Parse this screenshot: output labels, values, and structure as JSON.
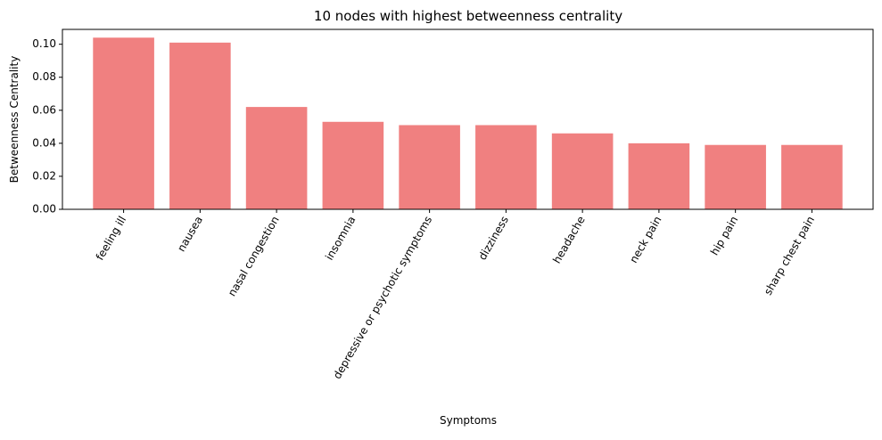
{
  "chart_data": {
    "type": "bar",
    "title": "10 nodes with highest betweenness centrality",
    "xlabel": "Symptoms",
    "ylabel": "Betweenness Centrality",
    "categories": [
      "feeling ill",
      "nausea",
      "nasal congestion",
      "insomnia",
      "depressive or psychotic symptoms",
      "dizziness",
      "headache",
      "neck pain",
      "hip pain",
      "sharp chest pain"
    ],
    "values": [
      0.104,
      0.101,
      0.062,
      0.053,
      0.051,
      0.051,
      0.046,
      0.04,
      0.039,
      0.039
    ],
    "ylim": [
      0,
      0.109
    ],
    "yticks": [
      0.0,
      0.02,
      0.04,
      0.06,
      0.08,
      0.1
    ],
    "ytick_labels": [
      "0.00",
      "0.02",
      "0.04",
      "0.06",
      "0.08",
      "0.10"
    ],
    "xtick_rotation_deg": -60,
    "grid": false,
    "legend": "none",
    "bar_color": "#f08080",
    "axis_color": "#000000"
  }
}
